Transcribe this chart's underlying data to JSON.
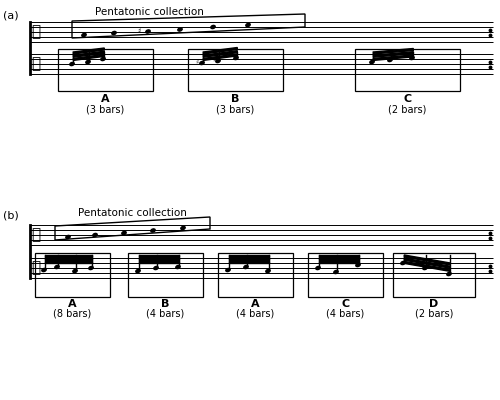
{
  "fig_width": 5.0,
  "fig_height": 4.0,
  "dpi": 100,
  "bg_color": "#ffffff",
  "section_a_label": "(a)",
  "section_b_label": "(b)",
  "pentatonic_label": "Pentatonic collection",
  "sa_labels": [
    "A",
    "B",
    "C"
  ],
  "sa_bars": [
    "(3 bars)",
    "(3 bars)",
    "(2 bars)"
  ],
  "sb_labels": [
    "A",
    "B",
    "A",
    "C",
    "D"
  ],
  "sb_bars": [
    "(8 bars)",
    "(4 bars)",
    "(4 bars)",
    "(4 bars)",
    "(2 bars)"
  ]
}
